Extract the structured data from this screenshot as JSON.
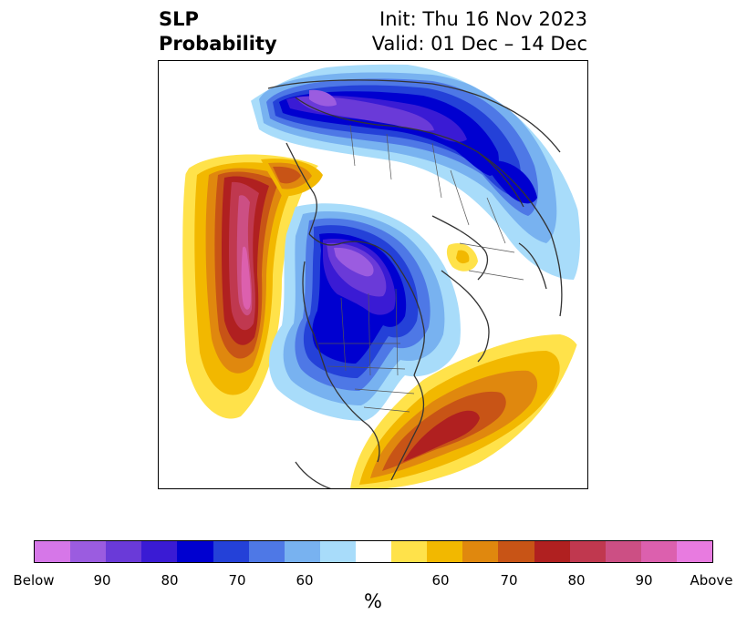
{
  "header": {
    "title_line1": "SLP",
    "title_line2": "Probability",
    "init": "Init: Thu 16 Nov 2023",
    "valid": "Valid: 01 Dec – 14 Dec"
  },
  "map": {
    "projection": "north-polar-stereographic",
    "features": [
      "coastlines",
      "country-borders",
      "state-province-borders"
    ]
  },
  "colorbar": {
    "colors": [
      "#d677e8",
      "#9b5ce0",
      "#6a3ad8",
      "#3a1bd4",
      "#0000d0",
      "#2441d8",
      "#4e78e6",
      "#78b2f0",
      "#a8dcfa",
      "#ffffff",
      "#ffe24a",
      "#f2b800",
      "#e0880e",
      "#c85416",
      "#b02020",
      "#c0384f",
      "#cc4f84",
      "#dc60ae",
      "#e87be0"
    ],
    "tick_labels": [
      "Below",
      "90",
      "80",
      "70",
      "60",
      "60",
      "70",
      "80",
      "90",
      "Above"
    ],
    "label": "%"
  }
}
